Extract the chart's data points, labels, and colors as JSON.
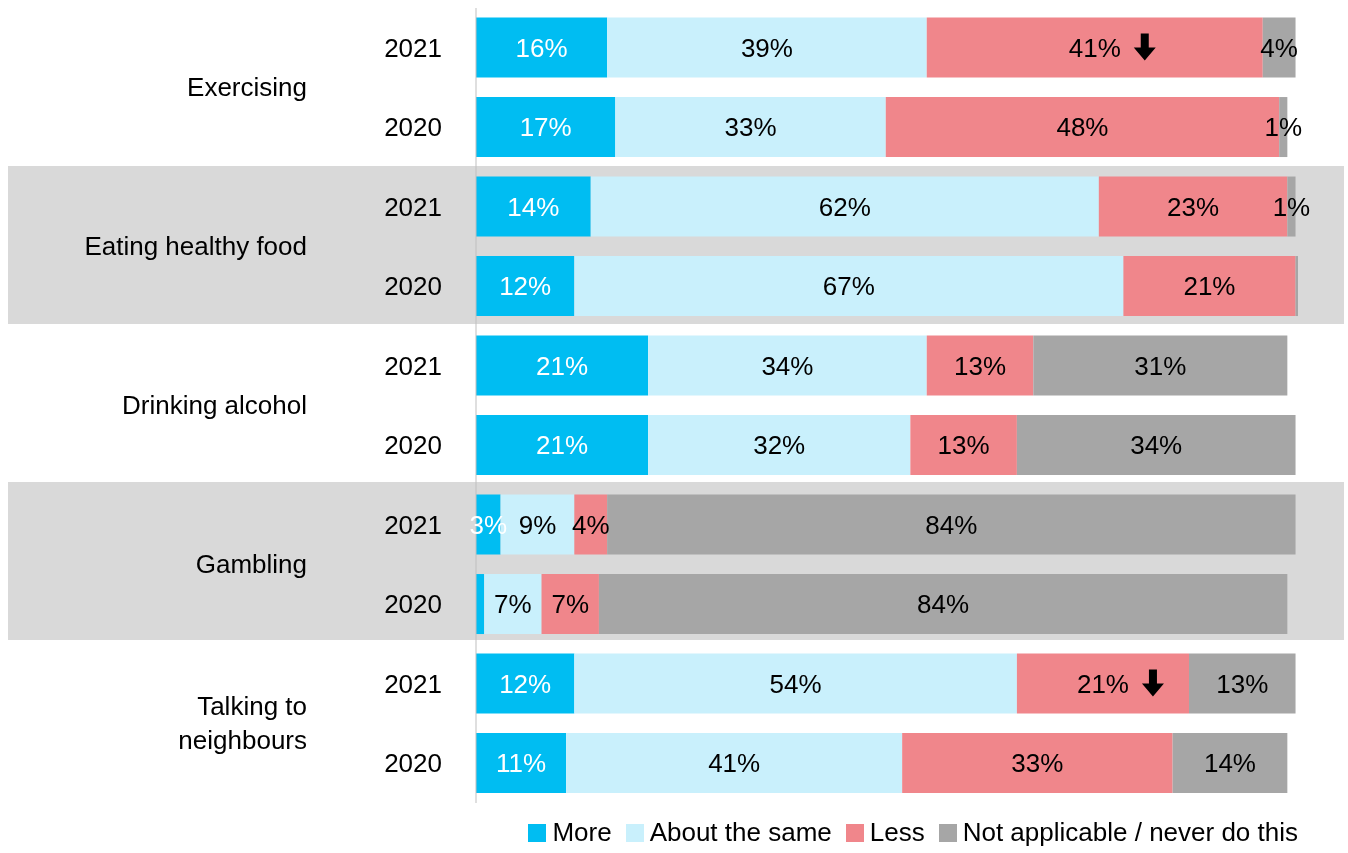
{
  "chart_data": {
    "type": "bar",
    "orientation": "horizontal",
    "stacked": true,
    "legend": "bottom",
    "categories": [
      "2021",
      "2020",
      "2021",
      "2020",
      "2021",
      "2020",
      "2021",
      "2020",
      "2021",
      "2020"
    ],
    "annotations": [
      "Exercising",
      "Eating healthy food",
      "Drinking alcohol",
      "Gambling",
      "Talking to neighbours"
    ],
    "series": [
      {
        "name": "More",
        "color": "#00bdf2",
        "values": [
          16,
          17,
          14,
          12,
          21,
          21,
          3,
          1,
          12,
          11
        ],
        "value_labels": [
          "16%",
          "17%",
          "14%",
          "12%",
          "21%",
          "21%",
          "3%",
          null,
          "12%",
          "11%"
        ]
      },
      {
        "name": "About the same",
        "color": "#c9f0fc",
        "values": [
          39,
          33,
          62,
          67,
          34,
          32,
          9,
          7,
          54,
          41
        ],
        "value_labels": [
          "39%",
          "33%",
          "62%",
          "67%",
          "34%",
          "32%",
          "9%",
          "7%",
          "54%",
          "41%"
        ]
      },
      {
        "name": "Less",
        "color": "#f0868b",
        "values": [
          41,
          48,
          23,
          21,
          13,
          13,
          4,
          7,
          21,
          33
        ],
        "value_labels": [
          "41%",
          "48%",
          "23%",
          "21%",
          "13%",
          "13%",
          "4%",
          "7%",
          "21%",
          "33%"
        ]
      },
      {
        "name": "Not applicable / never do this",
        "color": "#a6a6a6",
        "values": [
          4,
          1,
          1,
          0.3,
          31,
          34,
          84,
          84,
          13,
          14
        ],
        "value_labels": [
          "4%",
          "1%",
          "1%",
          null,
          "31%",
          "34%",
          "84%",
          "84%",
          "13%",
          "14%"
        ]
      }
    ]
  }
}
